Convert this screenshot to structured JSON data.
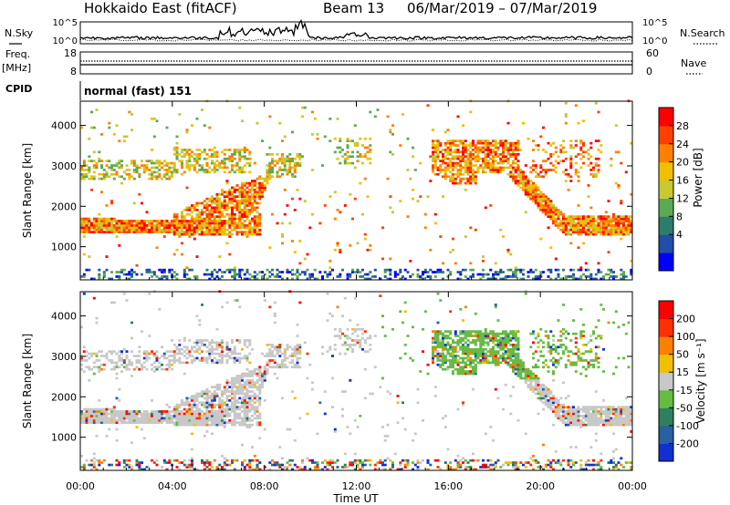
{
  "header": {
    "title": "Hokkaido East (fitACF)",
    "beam": "Beam 13",
    "date_range": "06/Mar/2019 – 07/Mar/2019"
  },
  "top_panels": {
    "nsky_label": "N.Sky",
    "nsearch_label": "N.Search",
    "noise_ticks_left": [
      "10^5",
      "10^0"
    ],
    "noise_ticks_right": [
      "10^5",
      "10^0"
    ],
    "freq_label": "Freq.",
    "freq_unit": "[MHz]",
    "freq_ticks": [
      "18",
      "8"
    ],
    "nave_label": "Nave",
    "nave_ticks": [
      "60",
      "0"
    ],
    "cpid_label": "CPID",
    "cpid_text": "normal (fast) 151"
  },
  "chart_data": [
    {
      "type": "heatmap",
      "parameter": "Power",
      "ylabel": "Slant Range [km]",
      "yticks": [
        1000,
        2000,
        3000,
        4000
      ],
      "ylim": [
        180,
        4600
      ],
      "xlim": [
        0,
        24
      ],
      "colorbar": {
        "label": "Power [dB]",
        "ticks": [
          "28",
          "24",
          "20",
          "16",
          "12",
          "8",
          "4"
        ],
        "colors": [
          "#0000ff",
          "#1f4fa8",
          "#2e7d6b",
          "#5aaa55",
          "#c8c832",
          "#f0c000",
          "#ff8000",
          "#ff4000",
          "#ff0000"
        ]
      }
    },
    {
      "type": "heatmap",
      "parameter": "Velocity",
      "ylabel": "Slant Range [km]",
      "yticks": [
        1000,
        2000,
        3000,
        4000
      ],
      "ylim": [
        180,
        4600
      ],
      "xlim": [
        0,
        24
      ],
      "colorbar": {
        "label": "Velocity [m s⁻¹]",
        "ticks": [
          "200",
          "100",
          "50",
          "15",
          "-15",
          "-50",
          "-100",
          "-200"
        ],
        "colors": [
          "#1030d0",
          "#2860a0",
          "#2e8060",
          "#66bb44",
          "#c8c8c8",
          "#f0c000",
          "#ff8000",
          "#ff3000",
          "#ff0000"
        ]
      }
    }
  ],
  "x_axis": {
    "xlabel": "Time UT",
    "ticks": [
      "00:00",
      "04:00",
      "08:00",
      "12:00",
      "16:00",
      "20:00",
      "00:00"
    ],
    "tick_hours": [
      0,
      4,
      8,
      12,
      16,
      20,
      24
    ]
  }
}
